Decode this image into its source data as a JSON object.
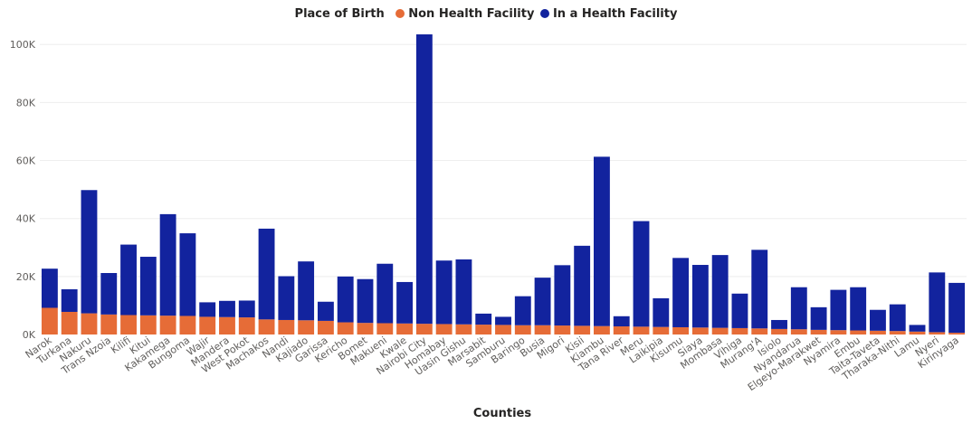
{
  "chart_data": {
    "type": "bar",
    "stacked": true,
    "legend": {
      "title": "Place of Birth",
      "position": "top-center"
    },
    "xlabel": "Counties",
    "ylabel": "",
    "ylim": [
      0,
      106000
    ],
    "yticks": [
      0,
      20000,
      40000,
      60000,
      80000,
      100000
    ],
    "ytick_labels": [
      "0K",
      "20K",
      "40K",
      "60K",
      "80K",
      "100K"
    ],
    "grid": true,
    "categories": [
      "Narok",
      "Turkana",
      "Nakuru",
      "Trans Nzoia",
      "Kilifi",
      "Kitui",
      "Kakamega",
      "Bungoma",
      "Wajir",
      "Mandera",
      "West Pokot",
      "Machakos",
      "Nandi",
      "Kajiado",
      "Garissa",
      "Kericho",
      "Bomet",
      "Makueni",
      "Kwale",
      "Nairobi City",
      "Homabay",
      "Uasin Gishu",
      "Marsabit",
      "Samburu",
      "Baringo",
      "Busia",
      "Migori",
      "Kisii",
      "Kiambu",
      "Tana River",
      "Meru",
      "Laikipia",
      "Kisumu",
      "Siaya",
      "Mombasa",
      "Vihiga",
      "Murang'A",
      "Isiolo",
      "Nyandarua",
      "Elgeyo-Marakwet",
      "Nyamira",
      "Embu",
      "Taita-Taveta",
      "Tharaka-Nithi",
      "Lamu",
      "Nyeri",
      "Kirinyaga"
    ],
    "series": [
      {
        "name": "Non Health Facility",
        "color": "#E66C37",
        "values": [
          9200,
          7800,
          7300,
          6900,
          6700,
          6600,
          6500,
          6400,
          6100,
          6000,
          5900,
          5200,
          5000,
          4900,
          4700,
          4200,
          4000,
          3900,
          3800,
          3700,
          3600,
          3500,
          3400,
          3300,
          3200,
          3200,
          3100,
          3000,
          2900,
          2800,
          2700,
          2600,
          2500,
          2400,
          2300,
          2200,
          2100,
          1900,
          1800,
          1600,
          1500,
          1400,
          1300,
          1200,
          1000,
          800,
          600
        ]
      },
      {
        "name": "In a Health Facility",
        "color": "#12239E",
        "values": [
          13500,
          7800,
          42500,
          14300,
          24300,
          20200,
          35000,
          28500,
          5000,
          5600,
          5800,
          31300,
          15100,
          20300,
          6600,
          15800,
          15100,
          20500,
          14300,
          99800,
          21900,
          22400,
          3800,
          2800,
          10000,
          16400,
          20800,
          27600,
          58400,
          3500,
          36400,
          9900,
          23900,
          21600,
          25100,
          11900,
          27100,
          3100,
          14500,
          7800,
          13900,
          14900,
          7200,
          9200,
          2300,
          20600,
          17200
        ]
      }
    ]
  }
}
